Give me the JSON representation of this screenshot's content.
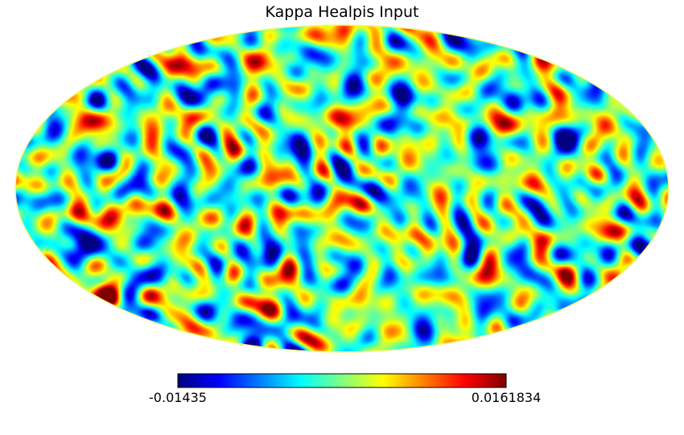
{
  "chart_data": {
    "type": "heatmap",
    "title": "Kappa Healpis Input",
    "projection": "mollweide",
    "colormap": "jet",
    "colorbar": {
      "min": -0.01435,
      "max": 0.0161834,
      "min_label": "-0.01435",
      "max_label": "0.0161834",
      "colors": [
        "#00007f",
        "#0000ff",
        "#007fff",
        "#00ffff",
        "#7fff7f",
        "#ffff00",
        "#ff7f00",
        "#ff0000",
        "#7f0000"
      ],
      "orientation": "horizontal",
      "placement": "bottom"
    }
  }
}
